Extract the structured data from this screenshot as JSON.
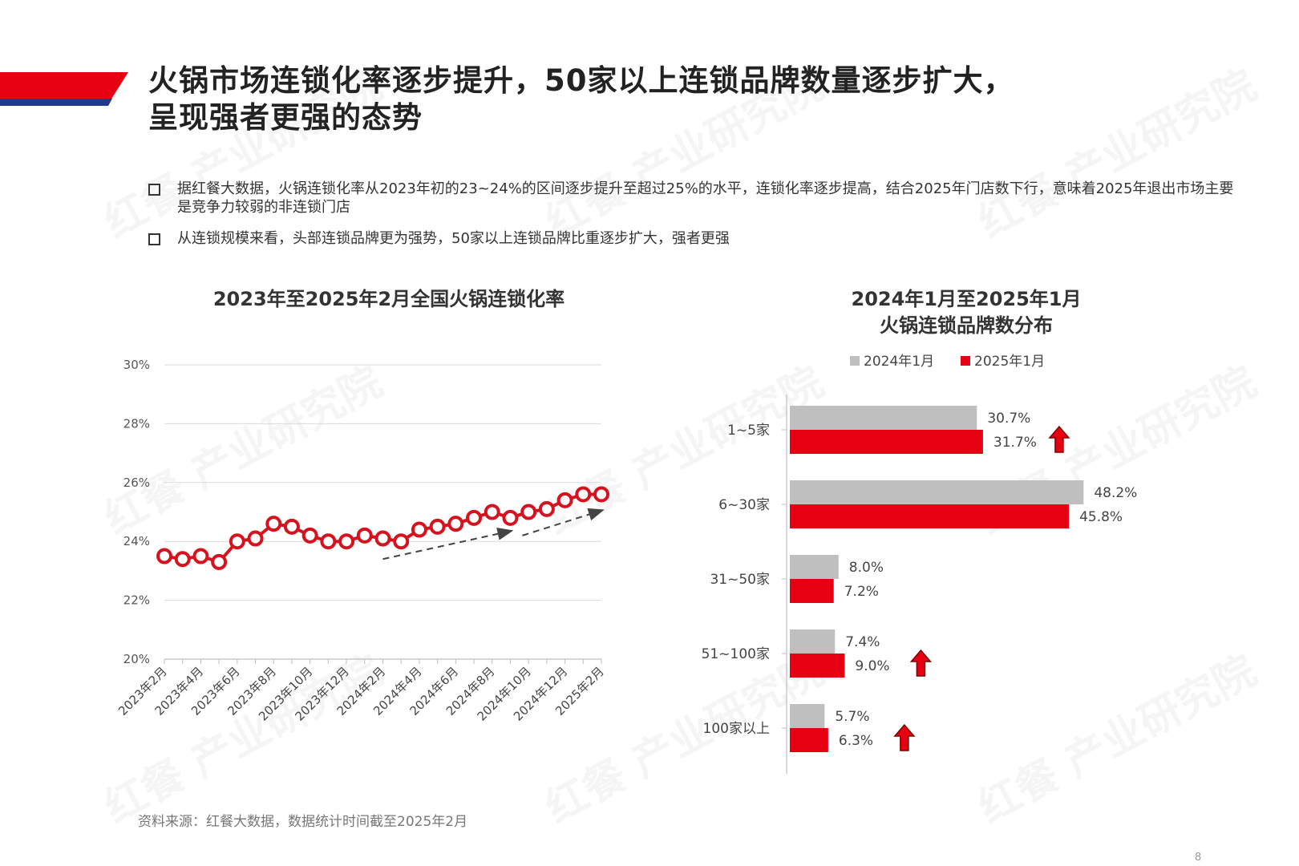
{
  "header": {
    "title_line1": "火锅市场连锁化率逐步提升，50家以上连锁品牌数量逐步扩大，",
    "title_line2": "呈现强者更强的态势",
    "accent_color": "#E60012",
    "accent_secondary": "#1F3A93"
  },
  "bullets": [
    "据红餐大数据，火锅连锁化率从2023年初的23~24%的区间逐步提升至超过25%的水平，连锁化率逐步提高，结合2025年门店数下行，意味着2025年退出市场主要是竞争力较弱的非连锁门店",
    "从连锁规模来看，头部连锁品牌更为强势，50家以上连锁品牌比重逐步扩大，强者更强"
  ],
  "watermark": "红餐 产业研究院",
  "footnote": "资料来源：红餐大数据，数据统计时间截至2025年2月",
  "page_number": "8",
  "chart_data": [
    {
      "type": "line",
      "title": "2023年至2025年2月全国火锅连锁化率",
      "x": [
        "2023年2月",
        "2023年3月",
        "2023年4月",
        "2023年5月",
        "2023年6月",
        "2023年7月",
        "2023年8月",
        "2023年9月",
        "2023年10月",
        "2023年11月",
        "2023年12月",
        "2024年1月",
        "2024年2月",
        "2024年3月",
        "2024年4月",
        "2024年5月",
        "2024年6月",
        "2024年7月",
        "2024年8月",
        "2024年9月",
        "2024年10月",
        "2024年11月",
        "2024年12月",
        "2025年1月",
        "2025年2月"
      ],
      "x_tick_labels": [
        "2023年2月",
        "2023年4月",
        "2023年6月",
        "2023年8月",
        "2023年10月",
        "2023年12月",
        "2024年2月",
        "2024年4月",
        "2024年6月",
        "2024年8月",
        "2024年10月",
        "2024年12月",
        "2025年2月"
      ],
      "series": [
        {
          "values": [
            23.5,
            23.4,
            23.5,
            23.3,
            24.0,
            24.1,
            24.6,
            24.5,
            24.2,
            24.0,
            24.0,
            24.2,
            24.1,
            24.0,
            24.4,
            24.5,
            24.6,
            24.8,
            25.0,
            24.8,
            25.0,
            25.1,
            25.4,
            25.6,
            25.6
          ],
          "color": "#D7121F"
        }
      ],
      "ylim": [
        20,
        30
      ],
      "y_tick_labels": [
        "20%",
        "22%",
        "24%",
        "26%",
        "28%",
        "30%"
      ],
      "grid": true,
      "trend_arrows": true
    },
    {
      "type": "bar",
      "orientation": "horizontal",
      "title": "2024年1月至2025年1月\n火锅连锁品牌数分布",
      "categories": [
        "1~5家",
        "6~30家",
        "31~50家",
        "51~100家",
        "100家以上"
      ],
      "series": [
        {
          "name": "2024年1月",
          "values": [
            30.7,
            48.2,
            8.0,
            7.4,
            5.7
          ],
          "labels": [
            "30.7%",
            "48.2%",
            "8.0%",
            "7.4%",
            "5.7%"
          ],
          "color": "#BFBFBF"
        },
        {
          "name": "2025年1月",
          "values": [
            31.7,
            45.8,
            7.2,
            9.0,
            6.3
          ],
          "labels": [
            "31.7%",
            "45.8%",
            "7.2%",
            "9.0%",
            "6.3%"
          ],
          "color": "#E60012"
        }
      ],
      "up_arrows": [
        "1~5家",
        "51~100家",
        "100家以上"
      ],
      "legend": "top"
    }
  ]
}
